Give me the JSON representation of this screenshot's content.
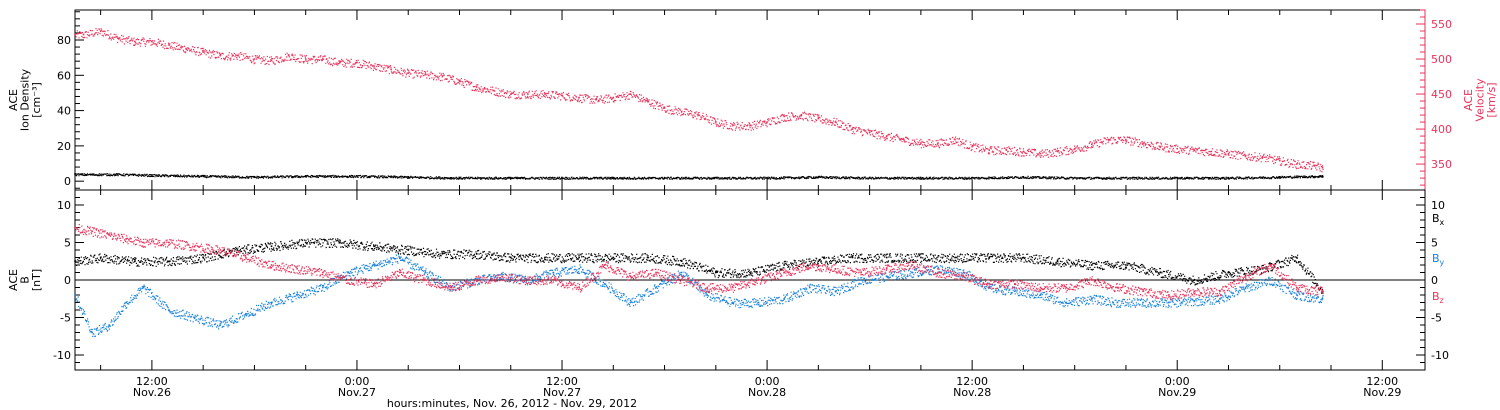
{
  "colors": {
    "black": "#000000",
    "pink": "#e8325a",
    "blue": "#1a82dc"
  },
  "x_labels": {
    "caption": "hours:minutes, Nov. 26, 2012 - Nov. 29, 2012",
    "ticks": [
      {
        "hour": 12,
        "time": "12:00",
        "date": "Nov.26"
      },
      {
        "hour": 24,
        "time": "0:00",
        "date": "Nov.27"
      },
      {
        "hour": 36,
        "time": "12:00",
        "date": "Nov.27"
      },
      {
        "hour": 48,
        "time": "0:00",
        "date": "Nov.28"
      },
      {
        "hour": 60,
        "time": "12:00",
        "date": "Nov.28"
      },
      {
        "hour": 72,
        "time": "0:00",
        "date": "Nov.29"
      },
      {
        "hour": 84,
        "time": "12:00",
        "date": "Nov.29"
      }
    ]
  },
  "chart_data": [
    {
      "type": "scatter",
      "panel": "top",
      "ylabel_left": [
        "ACE",
        "Ion Density",
        "[cm⁻³]"
      ],
      "ylabel_right": [
        "ACE",
        "Velocity",
        "[km/s]"
      ],
      "ylim_left": [
        -5,
        97
      ],
      "ylim_right": [
        313,
        570
      ],
      "yticks_left": [
        0,
        20,
        40,
        60,
        80
      ],
      "yticks_right": [
        350,
        400,
        450,
        500,
        550
      ],
      "xlim_hours": [
        7.5,
        86.5
      ],
      "series": [
        {
          "name": "density",
          "axis": "left",
          "color": "black",
          "x": [
            7.5,
            10,
            12,
            15,
            18,
            21,
            24,
            27,
            30,
            33,
            36,
            39,
            42,
            45,
            48,
            51,
            54,
            57,
            60,
            63,
            66,
            69,
            72,
            75,
            78,
            80.5
          ],
          "y": [
            4,
            4,
            3.5,
            3,
            2.5,
            3,
            3,
            2.5,
            2,
            2,
            2,
            2,
            2,
            2,
            2,
            2.5,
            2,
            2,
            2,
            2.5,
            2,
            2,
            2,
            2,
            2.5,
            3
          ]
        },
        {
          "name": "velocity",
          "axis": "right",
          "color": "pink",
          "x": [
            7.5,
            8,
            9,
            10,
            11,
            12,
            13,
            14,
            15,
            16,
            17,
            18,
            19,
            20,
            21,
            22,
            23,
            24,
            25,
            26,
            27,
            28,
            29,
            30,
            31,
            32,
            33,
            34,
            35,
            36,
            37,
            38,
            39,
            40,
            41,
            42,
            43,
            44,
            45,
            46,
            47,
            48,
            49,
            50,
            51,
            52,
            53,
            54,
            55,
            56,
            57,
            58,
            59,
            60,
            61,
            62,
            63,
            64,
            65,
            66,
            67,
            68,
            69,
            70,
            71,
            72,
            73,
            74,
            75,
            76,
            77,
            78,
            79,
            80,
            80.5
          ],
          "y": [
            535,
            535,
            540,
            530,
            525,
            525,
            520,
            515,
            510,
            505,
            505,
            500,
            498,
            505,
            500,
            500,
            495,
            495,
            490,
            485,
            480,
            478,
            475,
            468,
            460,
            455,
            450,
            450,
            450,
            448,
            445,
            442,
            445,
            450,
            440,
            430,
            425,
            420,
            410,
            405,
            405,
            410,
            418,
            420,
            415,
            410,
            400,
            395,
            390,
            385,
            380,
            380,
            385,
            375,
            370,
            370,
            368,
            365,
            368,
            372,
            378,
            385,
            385,
            380,
            375,
            372,
            370,
            368,
            365,
            362,
            360,
            355,
            350,
            348,
            345
          ]
        }
      ]
    },
    {
      "type": "scatter",
      "panel": "bottom",
      "ylabel": [
        "ACE",
        "B",
        "[nT]"
      ],
      "ylim": [
        -12,
        12
      ],
      "yticks": [
        -10,
        -5,
        0,
        5,
        10
      ],
      "xlim_hours": [
        7.5,
        86.5
      ],
      "series": [
        {
          "name": "Bx",
          "color": "black",
          "x": [
            7.5,
            9,
            11,
            13,
            15,
            17,
            19,
            21,
            23,
            25,
            27,
            29,
            31,
            33,
            35,
            37,
            39,
            41,
            43,
            45,
            47,
            49,
            51,
            53,
            55,
            57,
            59,
            61,
            63,
            65,
            67,
            69,
            71,
            73,
            75,
            77,
            79,
            80.5
          ],
          "y": [
            2.5,
            3,
            2.5,
            2.5,
            3,
            4,
            4.5,
            5,
            5,
            4.5,
            4,
            3.5,
            3.5,
            3,
            3,
            3,
            3,
            3,
            2.5,
            1,
            1,
            2,
            2.5,
            3,
            3,
            3,
            3,
            3,
            3,
            2.5,
            2,
            2,
            1,
            0,
            1,
            1.5,
            3,
            -1.5
          ]
        },
        {
          "name": "By",
          "color": "blue",
          "x": [
            7.5,
            8.5,
            9.5,
            10.5,
            11.5,
            13,
            14.5,
            16,
            17.5,
            19,
            20.5,
            22,
            23.5,
            25,
            26.5,
            28,
            29.5,
            31,
            32.5,
            34,
            35.5,
            37,
            38.5,
            40,
            41.5,
            43,
            44.5,
            46,
            47.5,
            49,
            50.5,
            52,
            53.5,
            55,
            56.5,
            58,
            59.5,
            61,
            62.5,
            64,
            65.5,
            67,
            68.5,
            70,
            71.5,
            73,
            74.5,
            76,
            77.5,
            79,
            80.5
          ],
          "y": [
            -2,
            -7,
            -6,
            -3,
            -1,
            -4,
            -5,
            -6,
            -4.5,
            -3,
            -2,
            -1,
            1,
            2,
            3,
            1,
            -1,
            0,
            0.5,
            0,
            1,
            1.5,
            -0.5,
            -3,
            -1,
            1,
            -2,
            -3,
            -3,
            -2.5,
            -1,
            -1.5,
            0,
            0.5,
            1,
            1.5,
            1,
            -1,
            -1.5,
            -2,
            -3,
            -2.5,
            -3,
            -3,
            -3,
            -2.8,
            -2.5,
            -1,
            0,
            -2,
            -2.5
          ]
        },
        {
          "name": "Bz",
          "color": "pink",
          "x": [
            7.5,
            8.5,
            9.5,
            10.5,
            11.5,
            13,
            14.5,
            16,
            17.5,
            19,
            20.5,
            22,
            23.5,
            25,
            26.5,
            28,
            29.5,
            31,
            32.5,
            34,
            35.5,
            37,
            38.5,
            40,
            41.5,
            43,
            44.5,
            46,
            47.5,
            49,
            50.5,
            52,
            53.5,
            55,
            56.5,
            58,
            59.5,
            61,
            62.5,
            64,
            65.5,
            67,
            68.5,
            70,
            71.5,
            73,
            74.5,
            76,
            77.5,
            79,
            80.5
          ],
          "y": [
            7,
            6.5,
            6,
            5.5,
            5,
            5,
            4.5,
            4,
            3,
            2,
            1.5,
            1,
            0,
            -0.5,
            1,
            0,
            -1,
            0,
            0.5,
            0,
            0,
            -1,
            2,
            0.5,
            1,
            0,
            -1,
            -1,
            0,
            1,
            2,
            1.5,
            1,
            1.5,
            2,
            1,
            0.5,
            -0.5,
            -0.5,
            -1,
            -1,
            0,
            -1,
            -1.5,
            -2,
            -1.5,
            -1.5,
            0.5,
            2,
            -1,
            -1.5
          ]
        }
      ],
      "legend": [
        {
          "label": "B",
          "sub": "x",
          "color": "black"
        },
        {
          "label": "B",
          "sub": "y",
          "color": "blue"
        },
        {
          "label": "B",
          "sub": "z",
          "color": "pink"
        }
      ]
    }
  ]
}
